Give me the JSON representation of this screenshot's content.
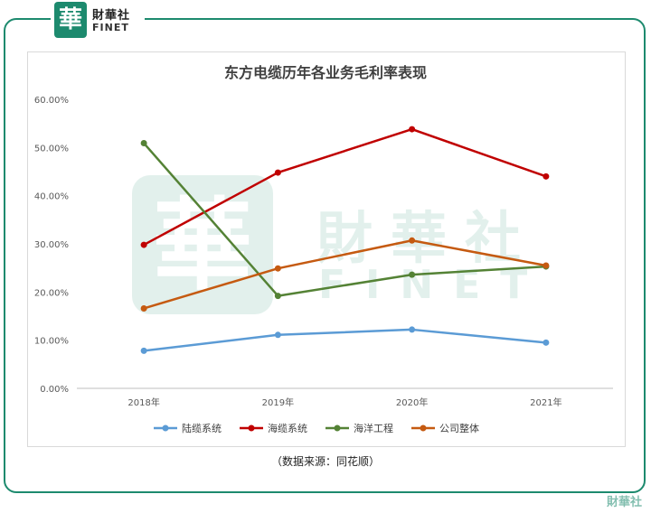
{
  "brand": {
    "logo_char": "華",
    "name_cn": "財華社",
    "name_en": "FINET",
    "watermark_cn": "財華社",
    "watermark_en": "FINET",
    "color": "#1d8a6e"
  },
  "source_note": "（数据来源：同花顺）",
  "chart_data": {
    "type": "line",
    "title": "东方电缆历年各业务毛利率表现",
    "categories": [
      "2018年",
      "2019年",
      "2020年",
      "2021年"
    ],
    "y_tick_labels": [
      "0.00%",
      "10.00%",
      "20.00%",
      "30.00%",
      "40.00%",
      "50.00%",
      "60.00%"
    ],
    "ylim": [
      0,
      60
    ],
    "grid": false,
    "legend_position": "bottom",
    "series": [
      {
        "name": "陆缆系统",
        "color": "#5b9bd5",
        "values": [
          7.8,
          11.1,
          12.2,
          9.5
        ]
      },
      {
        "name": "海缆系统",
        "color": "#c00000",
        "values": [
          29.8,
          44.8,
          53.8,
          44.0
        ]
      },
      {
        "name": "海洋工程",
        "color": "#548235",
        "values": [
          50.9,
          19.2,
          23.6,
          25.3
        ]
      },
      {
        "name": "公司整体",
        "color": "#c55a11",
        "values": [
          16.6,
          24.9,
          30.7,
          25.5
        ]
      }
    ]
  }
}
